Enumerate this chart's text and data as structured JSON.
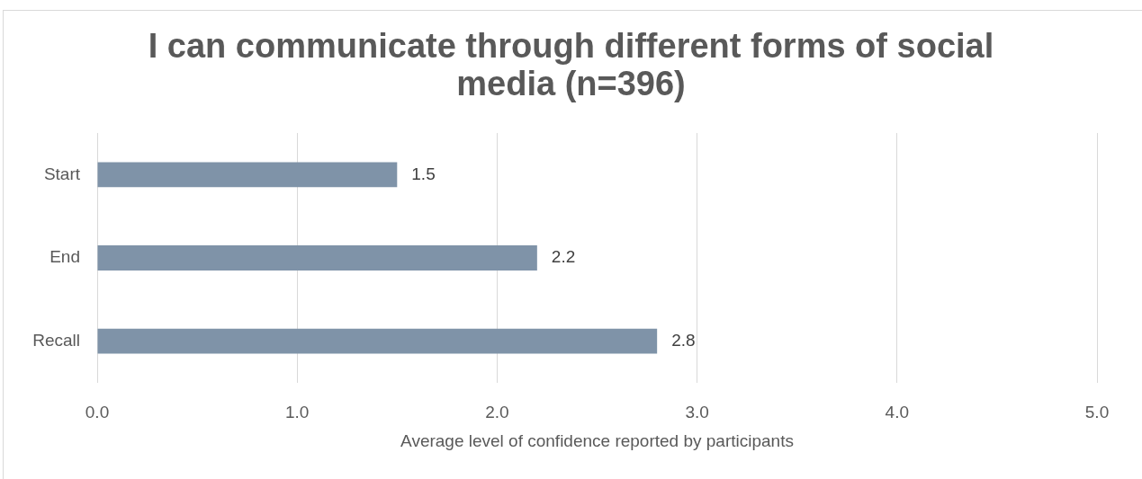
{
  "chart_data": {
    "type": "bar",
    "orientation": "horizontal",
    "title": "I can communicate through different forms of social media (n=396)",
    "xlabel": "Average level of confidence reported by participants",
    "categories": [
      "Start",
      "End",
      "Recall"
    ],
    "values": [
      1.5,
      2.2,
      2.8
    ],
    "color": "#7f93a8",
    "xlim": [
      0,
      5
    ],
    "xticks": [
      {
        "value": 0,
        "label": "0.0"
      },
      {
        "value": 1,
        "label": "1.0"
      },
      {
        "value": 2,
        "label": "2.0"
      },
      {
        "value": 3,
        "label": "3.0"
      },
      {
        "value": 4,
        "label": "4.0"
      },
      {
        "value": 5,
        "label": "5.0"
      }
    ],
    "grid": "x",
    "data_labels": true
  }
}
